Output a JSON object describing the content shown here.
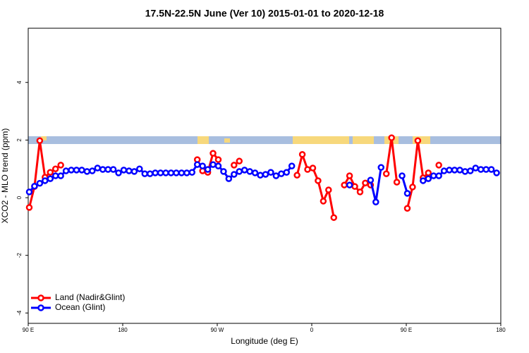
{
  "chart_data": {
    "type": "line",
    "title": "17.5N-22.5N June (Ver 10)   2015-01-01 to 2020-12-18",
    "xlabel": "Longitude (deg E)",
    "ylabel": "XCO2 - MLO trend (ppm)",
    "x": [
      91,
      96,
      101,
      106,
      111,
      116,
      121,
      126,
      131,
      136,
      141,
      146,
      151,
      156,
      161,
      166,
      171,
      176,
      181,
      186,
      191,
      196,
      201,
      206,
      211,
      216,
      221,
      226,
      231,
      236,
      241,
      246,
      251,
      256,
      261,
      266,
      271,
      276,
      281,
      286,
      291,
      296,
      301,
      306,
      311,
      316,
      321,
      326,
      331,
      336,
      341,
      346,
      351,
      356,
      361,
      366,
      371,
      376,
      381,
      386,
      391,
      396,
      401,
      406,
      411,
      416,
      421,
      426,
      431,
      436,
      441,
      446,
      451,
      456,
      461,
      466,
      471,
      476,
      481,
      486,
      491,
      496,
      501,
      506,
      511,
      516,
      521,
      526,
      531,
      536
    ],
    "series": [
      {
        "name": "Land (Nadir&Glint)",
        "color": "#ff0000",
        "values": [
          -0.34,
          0.39,
          1.98,
          0.71,
          0.88,
          1.0,
          1.13,
          null,
          null,
          null,
          null,
          null,
          null,
          null,
          null,
          null,
          null,
          null,
          null,
          null,
          null,
          null,
          null,
          null,
          null,
          null,
          null,
          null,
          null,
          null,
          null,
          null,
          1.32,
          0.93,
          0.88,
          1.54,
          1.32,
          null,
          null,
          1.13,
          1.27,
          null,
          null,
          null,
          null,
          null,
          null,
          null,
          null,
          null,
          null,
          0.78,
          1.5,
          0.98,
          1.03,
          0.59,
          -0.12,
          0.27,
          -0.69,
          null,
          0.44,
          0.76,
          0.39,
          0.2,
          0.51,
          0.44,
          null,
          null,
          0.83,
          2.08,
          0.54,
          null,
          -0.37,
          0.37,
          1.98,
          0.69,
          0.86,
          null,
          1.13,
          null,
          null,
          null,
          null,
          null,
          null,
          null,
          null,
          null,
          null,
          null
        ]
      },
      {
        "name": "Ocean (Glint)",
        "color": "#0000ff",
        "values": [
          0.2,
          0.4,
          0.5,
          0.59,
          0.66,
          0.76,
          0.76,
          0.93,
          0.96,
          0.96,
          0.96,
          0.91,
          0.93,
          1.03,
          0.98,
          0.98,
          0.98,
          0.86,
          0.96,
          0.93,
          0.91,
          1.0,
          0.83,
          0.83,
          0.86,
          0.86,
          0.86,
          0.86,
          0.86,
          0.86,
          0.86,
          0.88,
          1.15,
          1.1,
          0.98,
          1.15,
          1.1,
          0.91,
          0.66,
          0.81,
          0.91,
          0.96,
          0.91,
          0.86,
          0.78,
          0.81,
          0.88,
          0.76,
          0.83,
          0.88,
          1.1,
          null,
          null,
          null,
          null,
          null,
          null,
          null,
          null,
          null,
          null,
          0.44,
          null,
          null,
          null,
          0.61,
          -0.15,
          1.05,
          null,
          null,
          null,
          0.76,
          0.15,
          null,
          null,
          0.59,
          0.66,
          0.76,
          0.76,
          0.93,
          0.96,
          0.96,
          0.96,
          0.91,
          0.93,
          1.03,
          0.98,
          0.98,
          0.98,
          0.86
        ]
      }
    ],
    "xlim": [
      90,
      540
    ],
    "ylim": [
      -4.36,
      5.88
    ],
    "xticks": [
      {
        "value": 90,
        "label": "90 E"
      },
      180,
      {
        "value": 270,
        "label": "90 W"
      },
      {
        "value": 360,
        "label": "0"
      },
      {
        "value": 450,
        "label": "90 E"
      },
      {
        "value": 540,
        "label": "180"
      }
    ],
    "yticks": [
      -4,
      -2,
      0,
      2,
      4
    ],
    "legend": "bottomleft"
  }
}
